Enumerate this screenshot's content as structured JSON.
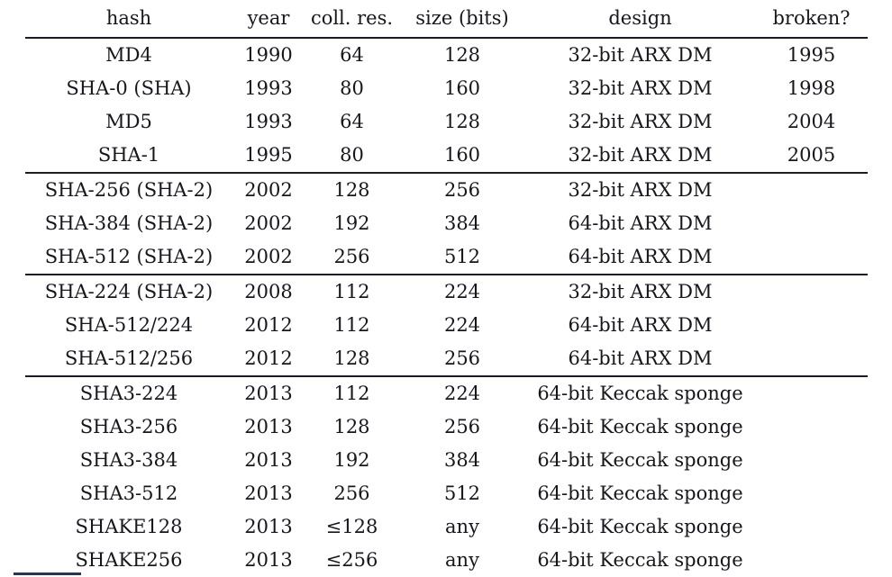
{
  "colors": {
    "text": "#16161d",
    "rule": "#1c1c26",
    "rule_fragment": "#2a3550",
    "background": "#ffffff"
  },
  "table": {
    "columns": [
      "hash",
      "year",
      "coll. res.",
      "size (bits)",
      "design",
      "broken?"
    ],
    "rows": [
      {
        "cells": [
          "MD4",
          "1990",
          "64",
          "128",
          "32-bit ARX DM",
          "1995"
        ]
      },
      {
        "cells": [
          "SHA-0 (SHA)",
          "1993",
          "80",
          "160",
          "32-bit ARX DM",
          "1998"
        ]
      },
      {
        "cells": [
          "MD5",
          "1993",
          "64",
          "128",
          "32-bit ARX DM",
          "2004"
        ]
      },
      {
        "cells": [
          "SHA-1",
          "1995",
          "80",
          "160",
          "32-bit ARX DM",
          "2005"
        ]
      },
      {
        "cells": [
          "SHA-256 (SHA-2)",
          "2002",
          "128",
          "256",
          "32-bit ARX DM",
          ""
        ]
      },
      {
        "cells": [
          "SHA-384 (SHA-2)",
          "2002",
          "192",
          "384",
          "64-bit ARX DM",
          ""
        ]
      },
      {
        "cells": [
          "SHA-512 (SHA-2)",
          "2002",
          "256",
          "512",
          "64-bit ARX DM",
          ""
        ]
      },
      {
        "cells": [
          "SHA-224 (SHA-2)",
          "2008",
          "112",
          "224",
          "32-bit ARX DM",
          ""
        ]
      },
      {
        "cells": [
          "SHA-512/224",
          "2012",
          "112",
          "224",
          "64-bit ARX DM",
          ""
        ]
      },
      {
        "cells": [
          "SHA-512/256",
          "2012",
          "128",
          "256",
          "64-bit ARX DM",
          ""
        ]
      },
      {
        "cells": [
          "SHA3-224",
          "2013",
          "112",
          "224",
          "64-bit Keccak sponge",
          ""
        ]
      },
      {
        "cells": [
          "SHA3-256",
          "2013",
          "128",
          "256",
          "64-bit Keccak sponge",
          ""
        ]
      },
      {
        "cells": [
          "SHA3-384",
          "2013",
          "192",
          "384",
          "64-bit Keccak sponge",
          ""
        ]
      },
      {
        "cells": [
          "SHA3-512",
          "2013",
          "256",
          "512",
          "64-bit Keccak sponge",
          ""
        ]
      },
      {
        "cells": [
          "SHAKE128",
          "2013",
          "≤128",
          "any",
          "64-bit Keccak sponge",
          ""
        ]
      },
      {
        "cells": [
          "SHAKE256",
          "2013",
          "≤256",
          "any",
          "64-bit Keccak sponge",
          ""
        ]
      }
    ]
  }
}
